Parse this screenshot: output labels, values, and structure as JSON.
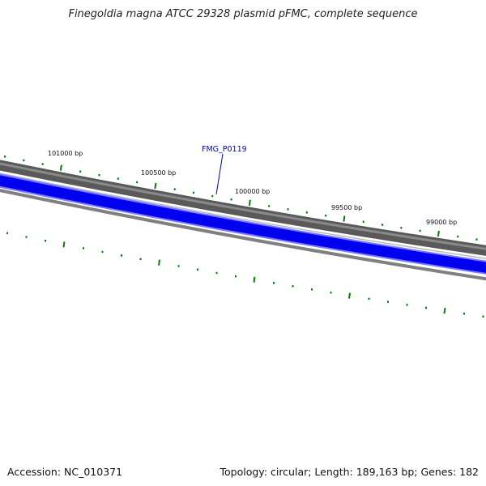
{
  "title": "Finegoldia magna ATCC 29328 plasmid pFMC, complete sequence",
  "footer": {
    "accession": "Accession: NC_010371",
    "summary": "Topology: circular; Length: 189,163 bp; Genes: 182"
  },
  "map": {
    "tick_labels": [
      "101000 bp",
      "100500 bp",
      "100000 bp",
      "99500 bp",
      "99000 bp"
    ],
    "gene_label": "FMG_P0119",
    "colors": {
      "backbone": "#5a5a5a",
      "gene_forward": "#0000ee",
      "gene_border": "#7777ff",
      "inner_track": "#808080",
      "gc_marks": "#008000",
      "gene_label": "#0000cc"
    }
  }
}
